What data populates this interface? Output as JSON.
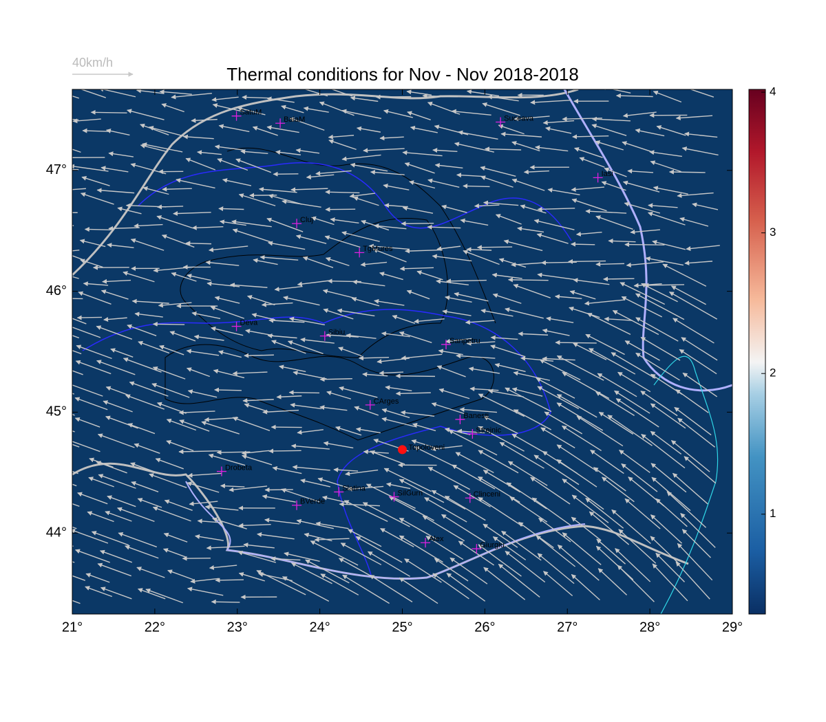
{
  "chart_data": {
    "type": "map",
    "title": "Thermal conditions for Nov - Nov  2018-2018",
    "scale_label": "40km/h",
    "xlim": [
      21,
      29
    ],
    "ylim": [
      43.33,
      47.67
    ],
    "xticks": [
      {
        "value": 21,
        "label": "21°"
      },
      {
        "value": 22,
        "label": "22°"
      },
      {
        "value": 23,
        "label": "23°"
      },
      {
        "value": 24,
        "label": "24°"
      },
      {
        "value": 25,
        "label": "25°"
      },
      {
        "value": 26,
        "label": "26°"
      },
      {
        "value": 27,
        "label": "27°"
      },
      {
        "value": 28,
        "label": "28°"
      },
      {
        "value": 29,
        "label": "29°"
      }
    ],
    "yticks": [
      {
        "value": 44,
        "label": "44°"
      },
      {
        "value": 45,
        "label": "45°"
      },
      {
        "value": 46,
        "label": "46°"
      },
      {
        "value": 47,
        "label": "47°"
      }
    ],
    "colorbar": {
      "lim": [
        0.29,
        4.02
      ],
      "ticks": [
        1,
        2,
        3,
        4
      ]
    },
    "station_color": "#e020e0",
    "stations": [
      {
        "name": "SatuM",
        "lon": 22.99,
        "lat": 47.45
      },
      {
        "name": "BaiaM",
        "lon": 23.52,
        "lat": 47.39
      },
      {
        "name": "Suceava",
        "lon": 26.19,
        "lat": 47.4
      },
      {
        "name": "Iasi",
        "lon": 27.37,
        "lat": 46.94
      },
      {
        "name": "Cluj",
        "lon": 23.72,
        "lat": 46.56
      },
      {
        "name": "TgMures",
        "lon": 24.48,
        "lat": 46.32
      },
      {
        "name": "Deva",
        "lon": 22.99,
        "lat": 45.71
      },
      {
        "name": "Sibiu",
        "lon": 24.06,
        "lat": 45.63
      },
      {
        "name": "Sanpetru",
        "lon": 25.53,
        "lat": 45.56
      },
      {
        "name": "CArges",
        "lon": 24.61,
        "lat": 45.06
      },
      {
        "name": "Banesti",
        "lon": 25.7,
        "lat": 44.94
      },
      {
        "name": "Strejnic",
        "lon": 25.85,
        "lat": 44.82
      },
      {
        "name": "Drobeta",
        "lon": 22.81,
        "lat": 44.51
      },
      {
        "name": "Slatina",
        "lon": 24.23,
        "lat": 44.34
      },
      {
        "name": "SilGurn",
        "lon": 24.9,
        "lat": 44.3
      },
      {
        "name": "Clinceni",
        "lon": 25.82,
        "lat": 44.29
      },
      {
        "name": "BVerde",
        "lon": 23.72,
        "lat": 44.23
      },
      {
        "name": "Alex",
        "lon": 25.28,
        "lat": 43.92
      },
      {
        "name": "Giurgiu",
        "lon": 25.9,
        "lat": 43.87
      }
    ],
    "highlight": {
      "name": "Topoloveni",
      "lon": 25.0,
      "lat": 44.69,
      "color": "#ff1010"
    }
  }
}
